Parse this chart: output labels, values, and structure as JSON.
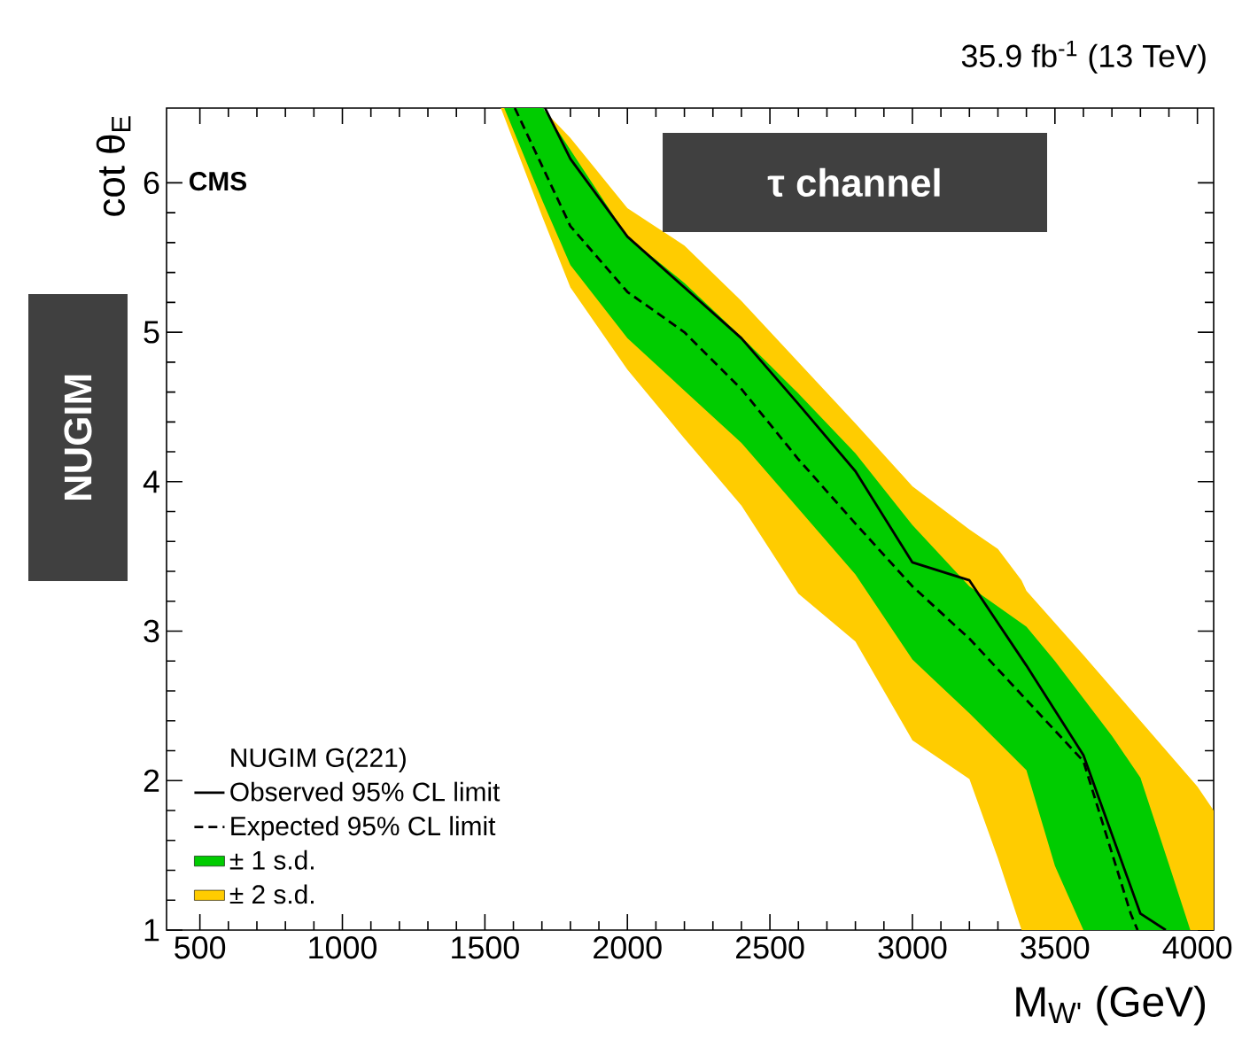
{
  "chart_data": {
    "type": "line",
    "title": "35.9 fb$^{-1}$ (13 TeV)",
    "xlabel": "M$_{W'}$ (GeV)",
    "ylabel": "cot θ$_{E}$",
    "legend_title": "NUGIM G(221)",
    "annotations": [
      "CMS",
      "τ channel",
      "NUGIM"
    ],
    "xlim": [
      383,
      4057
    ],
    "ylim": [
      1,
      6.5
    ],
    "xticks": [
      500,
      1000,
      1500,
      2000,
      2500,
      3000,
      3500,
      4000
    ],
    "yticks": [
      1,
      2,
      3,
      4,
      5,
      6
    ],
    "legend": "bottom left",
    "grid": false,
    "series": [
      {
        "name": "± 2 s.d.",
        "type": "area",
        "color": "#ffcc00",
        "x": [
          1556,
          1600,
          1700,
          1800,
          2000,
          2200,
          2400,
          2600,
          2800,
          3000,
          3200,
          3300,
          3383,
          3400,
          3600,
          3800,
          4000,
          4057
        ],
        "values": [
          null,
          null,
          null,
          null,
          null,
          null,
          null,
          null,
          null,
          null,
          null,
          null,
          null,
          null,
          null,
          null,
          null,
          null
        ],
        "lower": [
          6.5,
          6.28,
          5.78,
          5.3,
          4.75,
          4.29,
          3.84,
          3.25,
          2.93,
          2.27,
          2.01,
          1.48,
          1.0,
          1.0,
          1.0,
          1.0,
          1.0,
          1.0
        ],
        "upper": [
          6.5,
          6.5,
          6.5,
          6.3,
          5.83,
          5.58,
          5.21,
          4.8,
          4.39,
          3.97,
          3.68,
          3.55,
          3.34,
          3.27,
          2.84,
          2.4,
          1.96,
          1.8
        ]
      },
      {
        "name": "± 1 s.d.",
        "type": "area",
        "color": "#00cc00",
        "x": [
          1568,
          1704,
          1800,
          2000,
          2200,
          2400,
          2600,
          2800,
          3000,
          3200,
          3400,
          3500,
          3600,
          3700,
          3800,
          3900,
          3975
        ],
        "values": [
          null,
          null,
          null,
          null,
          null,
          null,
          null,
          null,
          null,
          null,
          null,
          null,
          null,
          null,
          null,
          null,
          null
        ],
        "lower": [
          6.5,
          5.87,
          5.45,
          4.96,
          4.61,
          4.26,
          3.82,
          3.38,
          2.81,
          2.45,
          2.07,
          1.43,
          1.0,
          1.0,
          1.0,
          1.0,
          1.0
        ],
        "upper": [
          6.5,
          6.5,
          6.22,
          5.64,
          5.33,
          4.97,
          4.59,
          4.19,
          3.71,
          3.3,
          3.03,
          2.8,
          2.55,
          2.3,
          2.02,
          1.44,
          1.0
        ]
      },
      {
        "name": "Expected 95% CL limit",
        "type": "line",
        "line_style": "dashed",
        "color": "#000000",
        "x": [
          1605,
          1800,
          2000,
          2200,
          2400,
          2600,
          2800,
          3000,
          3200,
          3400,
          3600,
          3766,
          3790
        ],
        "values": [
          6.5,
          5.71,
          5.27,
          5.0,
          4.62,
          4.15,
          3.72,
          3.3,
          2.95,
          2.54,
          2.13,
          1.11,
          1.0
        ]
      },
      {
        "name": "Observed 95% CL limit",
        "type": "line",
        "line_style": "solid",
        "color": "#000000",
        "x": [
          1711,
          1800,
          2000,
          2200,
          2400,
          2600,
          2800,
          3000,
          3200,
          3400,
          3600,
          3800,
          3889
        ],
        "values": [
          6.5,
          6.16,
          5.64,
          5.3,
          4.96,
          4.52,
          4.07,
          3.46,
          3.34,
          2.77,
          2.17,
          1.11,
          1.0
        ]
      }
    ]
  }
}
